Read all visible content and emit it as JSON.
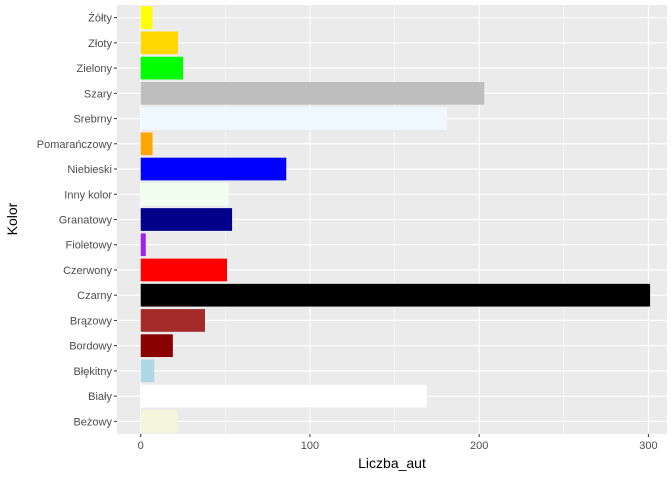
{
  "chart_data": {
    "type": "bar",
    "orientation": "horizontal",
    "xlabel": "Liczba_aut",
    "ylabel": "Kolor",
    "xlim": [
      -14,
      311
    ],
    "x_ticks": [
      0,
      100,
      200,
      300
    ],
    "grid": true,
    "categories": [
      "Beżowy",
      "Biały",
      "Błękitny",
      "Bordowy",
      "Brązowy",
      "Czarny",
      "Czerwony",
      "Fioletowy",
      "Granatowy",
      "Inny kolor",
      "Niebieski",
      "Pomarańczowy",
      "Srebrny",
      "Szary",
      "Zielony",
      "Złoty",
      "Żółty"
    ],
    "values": [
      22,
      169,
      8,
      19,
      38,
      301,
      51,
      3,
      54,
      52,
      86,
      7,
      181,
      203,
      25,
      22,
      7
    ],
    "colors": [
      "#F5F5DC",
      "#FFFFFF",
      "#ADD8E6",
      "#8B0000",
      "#A52A2A",
      "#000000",
      "#FF0000",
      "#A020F0",
      "#00008B",
      "#F0FFF0",
      "#0000FF",
      "#FFA500",
      "#F0F8FF",
      "#BEBEBE",
      "#00FF00",
      "#FFD700",
      "#FFFF00"
    ]
  }
}
